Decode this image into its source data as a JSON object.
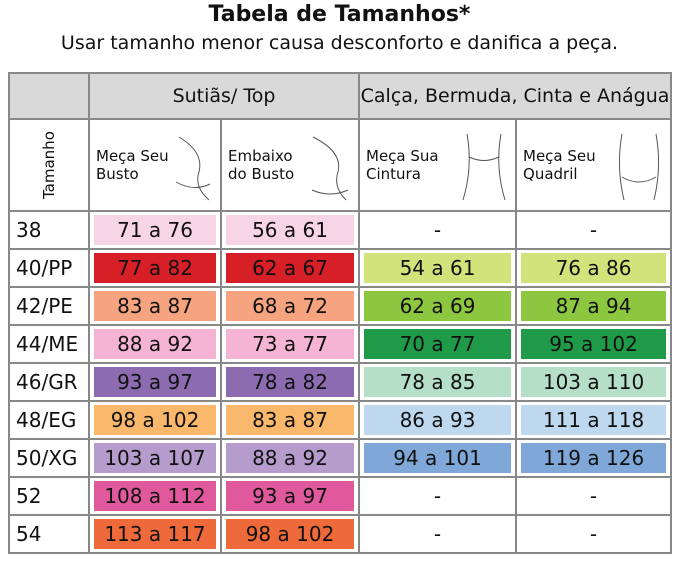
{
  "header": {
    "title": "Tabela de Tamanhos*",
    "subtitle": "Usar tamanho menor causa desconforto e danifica a peça."
  },
  "table": {
    "groups": [
      "Sutiãs/ Top",
      "Calça, Bermuda, Cinta e Anágua"
    ],
    "columns": [
      "Tamanho",
      "Meça Seu\nBusto",
      "Embaixo\ndo Busto",
      "Meça Sua\nCintura",
      "Meça Seu\nQuadril"
    ],
    "rows": [
      [
        "38",
        "71 a 76",
        "56 a 61",
        "-",
        "-"
      ],
      [
        "40/PP",
        "77 a 82",
        "62 a 67",
        "54 a 61",
        "76 a 86"
      ],
      [
        "42/PE",
        "83 a 87",
        "68 a 72",
        "62 a 69",
        "87 a 94"
      ],
      [
        "44/ME",
        "88 a 92",
        "73 a 77",
        "70 a 77",
        "95 a 102"
      ],
      [
        "46/GR",
        "93 a 97",
        "78 a 82",
        "78 a 85",
        "103 a 110"
      ],
      [
        "48/EG",
        "98 a 102",
        "83 a 87",
        "86 a 93",
        "111 a 118"
      ],
      [
        "50/XG",
        "103 a 107",
        "88 a 92",
        "94 a 101",
        "119 a 126"
      ],
      [
        "52",
        "108 a 112",
        "93 a 97",
        "-",
        "-"
      ],
      [
        "54",
        "113 a 117",
        "98 a 102",
        "-",
        "-"
      ]
    ]
  }
}
